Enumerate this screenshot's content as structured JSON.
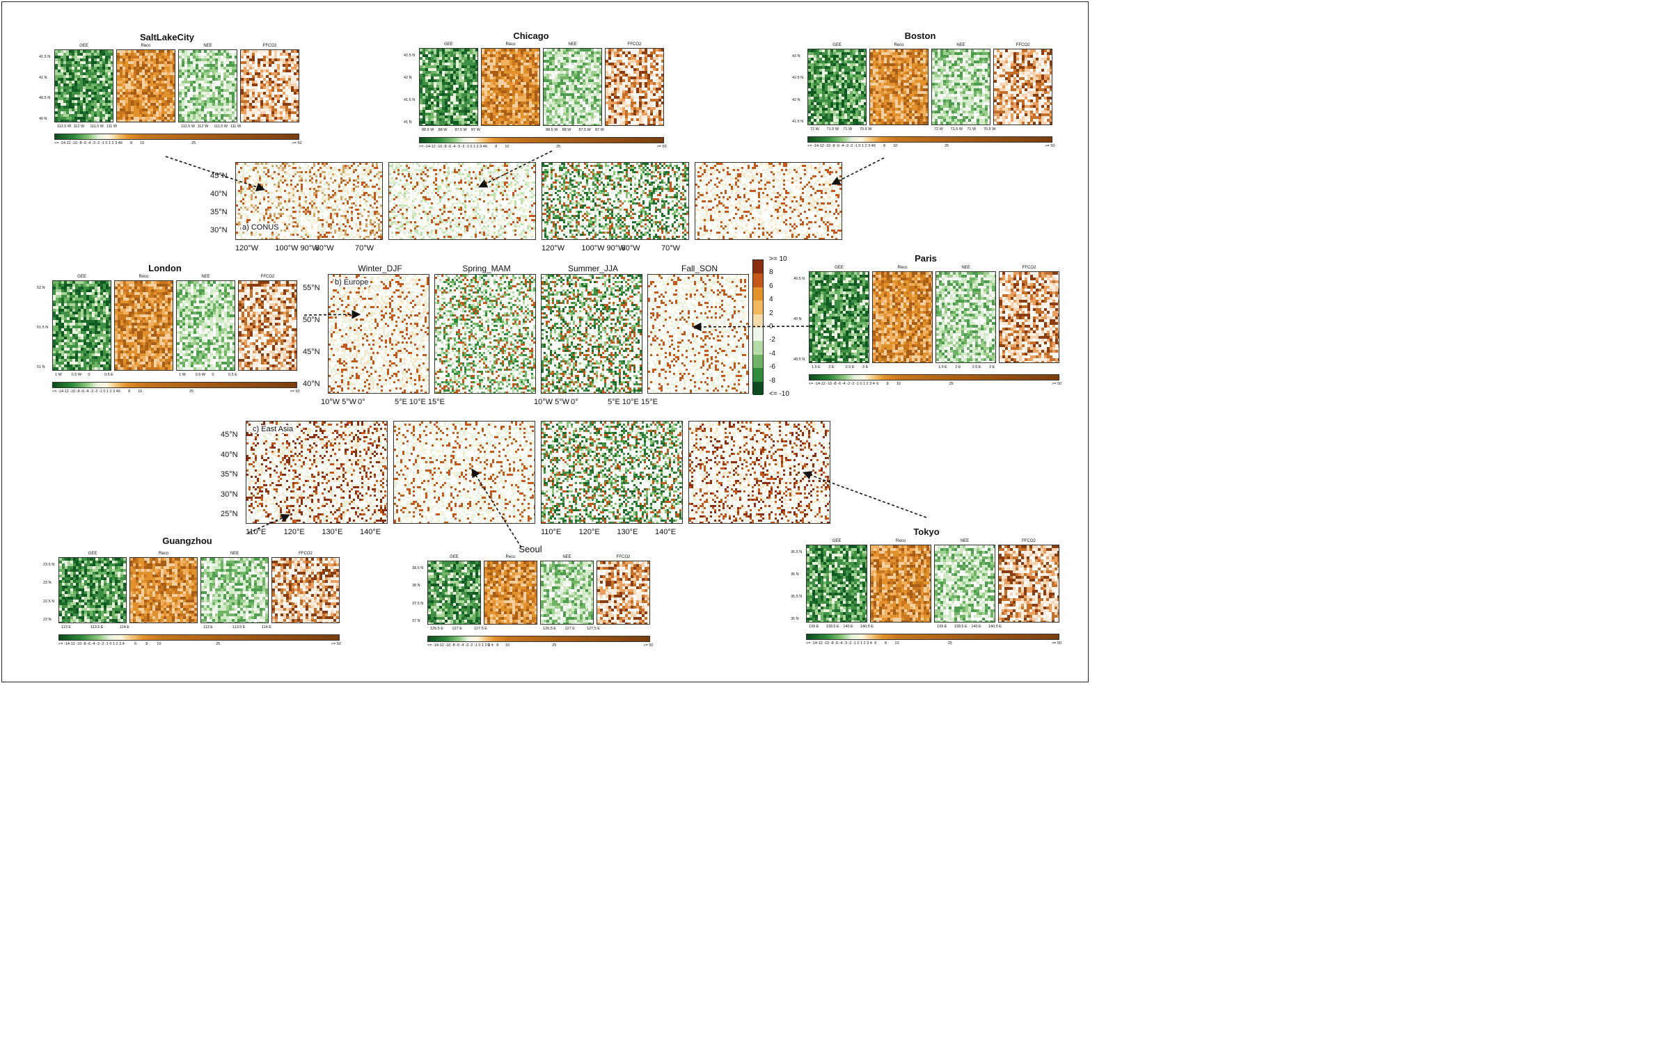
{
  "colors": {
    "dark_green": "#1e6b2c",
    "mid_green": "#5aa757",
    "light_green": "#cfe7c4",
    "cream": "#fbf3dc",
    "orange": "#e2922d",
    "brown": "#8a4a1a",
    "dark_red": "#8b2d10",
    "deep_green": "#0d4a1e"
  },
  "cities": [
    {
      "id": "slc",
      "title": "SaltLakeCity",
      "vars": [
        "GEE",
        "Reco",
        "NEE",
        "FFCO2"
      ],
      "yticks": [
        "41.5 N",
        "41 N",
        "40.5 N",
        "40 N"
      ],
      "xticks": [
        "112.5 W",
        "112 W",
        "111.5 W",
        "111 W"
      ]
    },
    {
      "id": "chicago",
      "title": "Chicago",
      "vars": [
        "GEE",
        "Reco",
        "NEE",
        "FFCO2"
      ],
      "yticks": [
        "42.5 N",
        "42 N",
        "41.5 N",
        "41 N"
      ],
      "xticks": [
        "88.5 W",
        "88 W",
        "87.5 W",
        "87 W"
      ]
    },
    {
      "id": "boston",
      "title": "Boston",
      "vars": [
        "GEE",
        "Reco",
        "NEE",
        "FFCO2"
      ],
      "yticks": [
        "43 N",
        "42.5 N",
        "42 N",
        "41.5 N"
      ],
      "xticks": [
        "72 W",
        "71.5 W",
        "71 W",
        "70.5 W"
      ]
    },
    {
      "id": "london",
      "title": "London",
      "vars": [
        "GEE",
        "Reco",
        "NEE",
        "FFCO2"
      ],
      "yticks": [
        "52 N",
        "51.5 N",
        "51 N"
      ],
      "xticks": [
        "1 W",
        "0.5 W",
        "0",
        "0.5 E"
      ]
    },
    {
      "id": "paris",
      "title": "Paris",
      "vars": [
        "GEE",
        "Reco",
        "NEE",
        "FFCO2"
      ],
      "yticks": [
        "49.5 N",
        "49 N",
        "48.5 N"
      ],
      "xticks": [
        "1.5 E",
        "2 E",
        "2.5 E",
        "3 E"
      ]
    },
    {
      "id": "guangzhou",
      "title": "Guangzhou",
      "vars": [
        "GEE",
        "Reco",
        "NEE",
        "FFCO2"
      ],
      "yticks": [
        "23.5 N",
        "23 N",
        "22.5 N",
        "22 N"
      ],
      "xticks": [
        "113 E",
        "113.5 E",
        "114 E"
      ]
    },
    {
      "id": "seoul",
      "title": "Seoul",
      "vars": [
        "GEE",
        "Reco",
        "NEE",
        "FFCO2"
      ],
      "yticks": [
        "38.5 N",
        "38 N",
        "37.5 N",
        "37 N"
      ],
      "xticks": [
        "126.5 E",
        "127 E",
        "127.5 E"
      ]
    },
    {
      "id": "tokyo",
      "title": "Tokyo",
      "vars": [
        "GEE",
        "Reco",
        "NEE",
        "FFCO2"
      ],
      "yticks": [
        "36.5 N",
        "36 N",
        "35.5 N",
        "35 N"
      ],
      "xticks": [
        "139 E",
        "139.5 E",
        "140 E",
        "140.5 E"
      ]
    }
  ],
  "colorbar_small": {
    "labels": [
      "<= -14-12 -10 -8 -6 -4 -3 -2 -1 0 1 2 3 4",
      "6",
      "8",
      "10",
      "25",
      ">= 50"
    ]
  },
  "regions": {
    "conus": {
      "label": "a) CONUS",
      "yticks": [
        "45°N",
        "40°N",
        "35°N",
        "30°N"
      ],
      "xticks": [
        "120°W",
        "100°W 90°W",
        "80°W",
        "70°W"
      ]
    },
    "europe": {
      "label": "b) Europe",
      "yticks": [
        "55°N",
        "50°N",
        "45°N",
        "40°N"
      ],
      "xticks": [
        "10°W 5°W",
        "0°",
        "5°E 10°E 15°E"
      ]
    },
    "eastasia": {
      "label": "c) East Asia",
      "yticks": [
        "45°N",
        "40°N",
        "35°N",
        "30°N",
        "25°N"
      ],
      "xticks": [
        "110°E",
        "120°E",
        "130°E",
        "140°E"
      ]
    }
  },
  "seasons": [
    "Winter_DJF",
    "Spring_MAM",
    "Summer_JJA",
    "Fall_SON"
  ],
  "colorbar_big": {
    "labels": [
      ">= 10",
      "8",
      "6",
      "4",
      "2",
      "0",
      "-2",
      "-4",
      "-6",
      "-8",
      "<= -10"
    ]
  }
}
